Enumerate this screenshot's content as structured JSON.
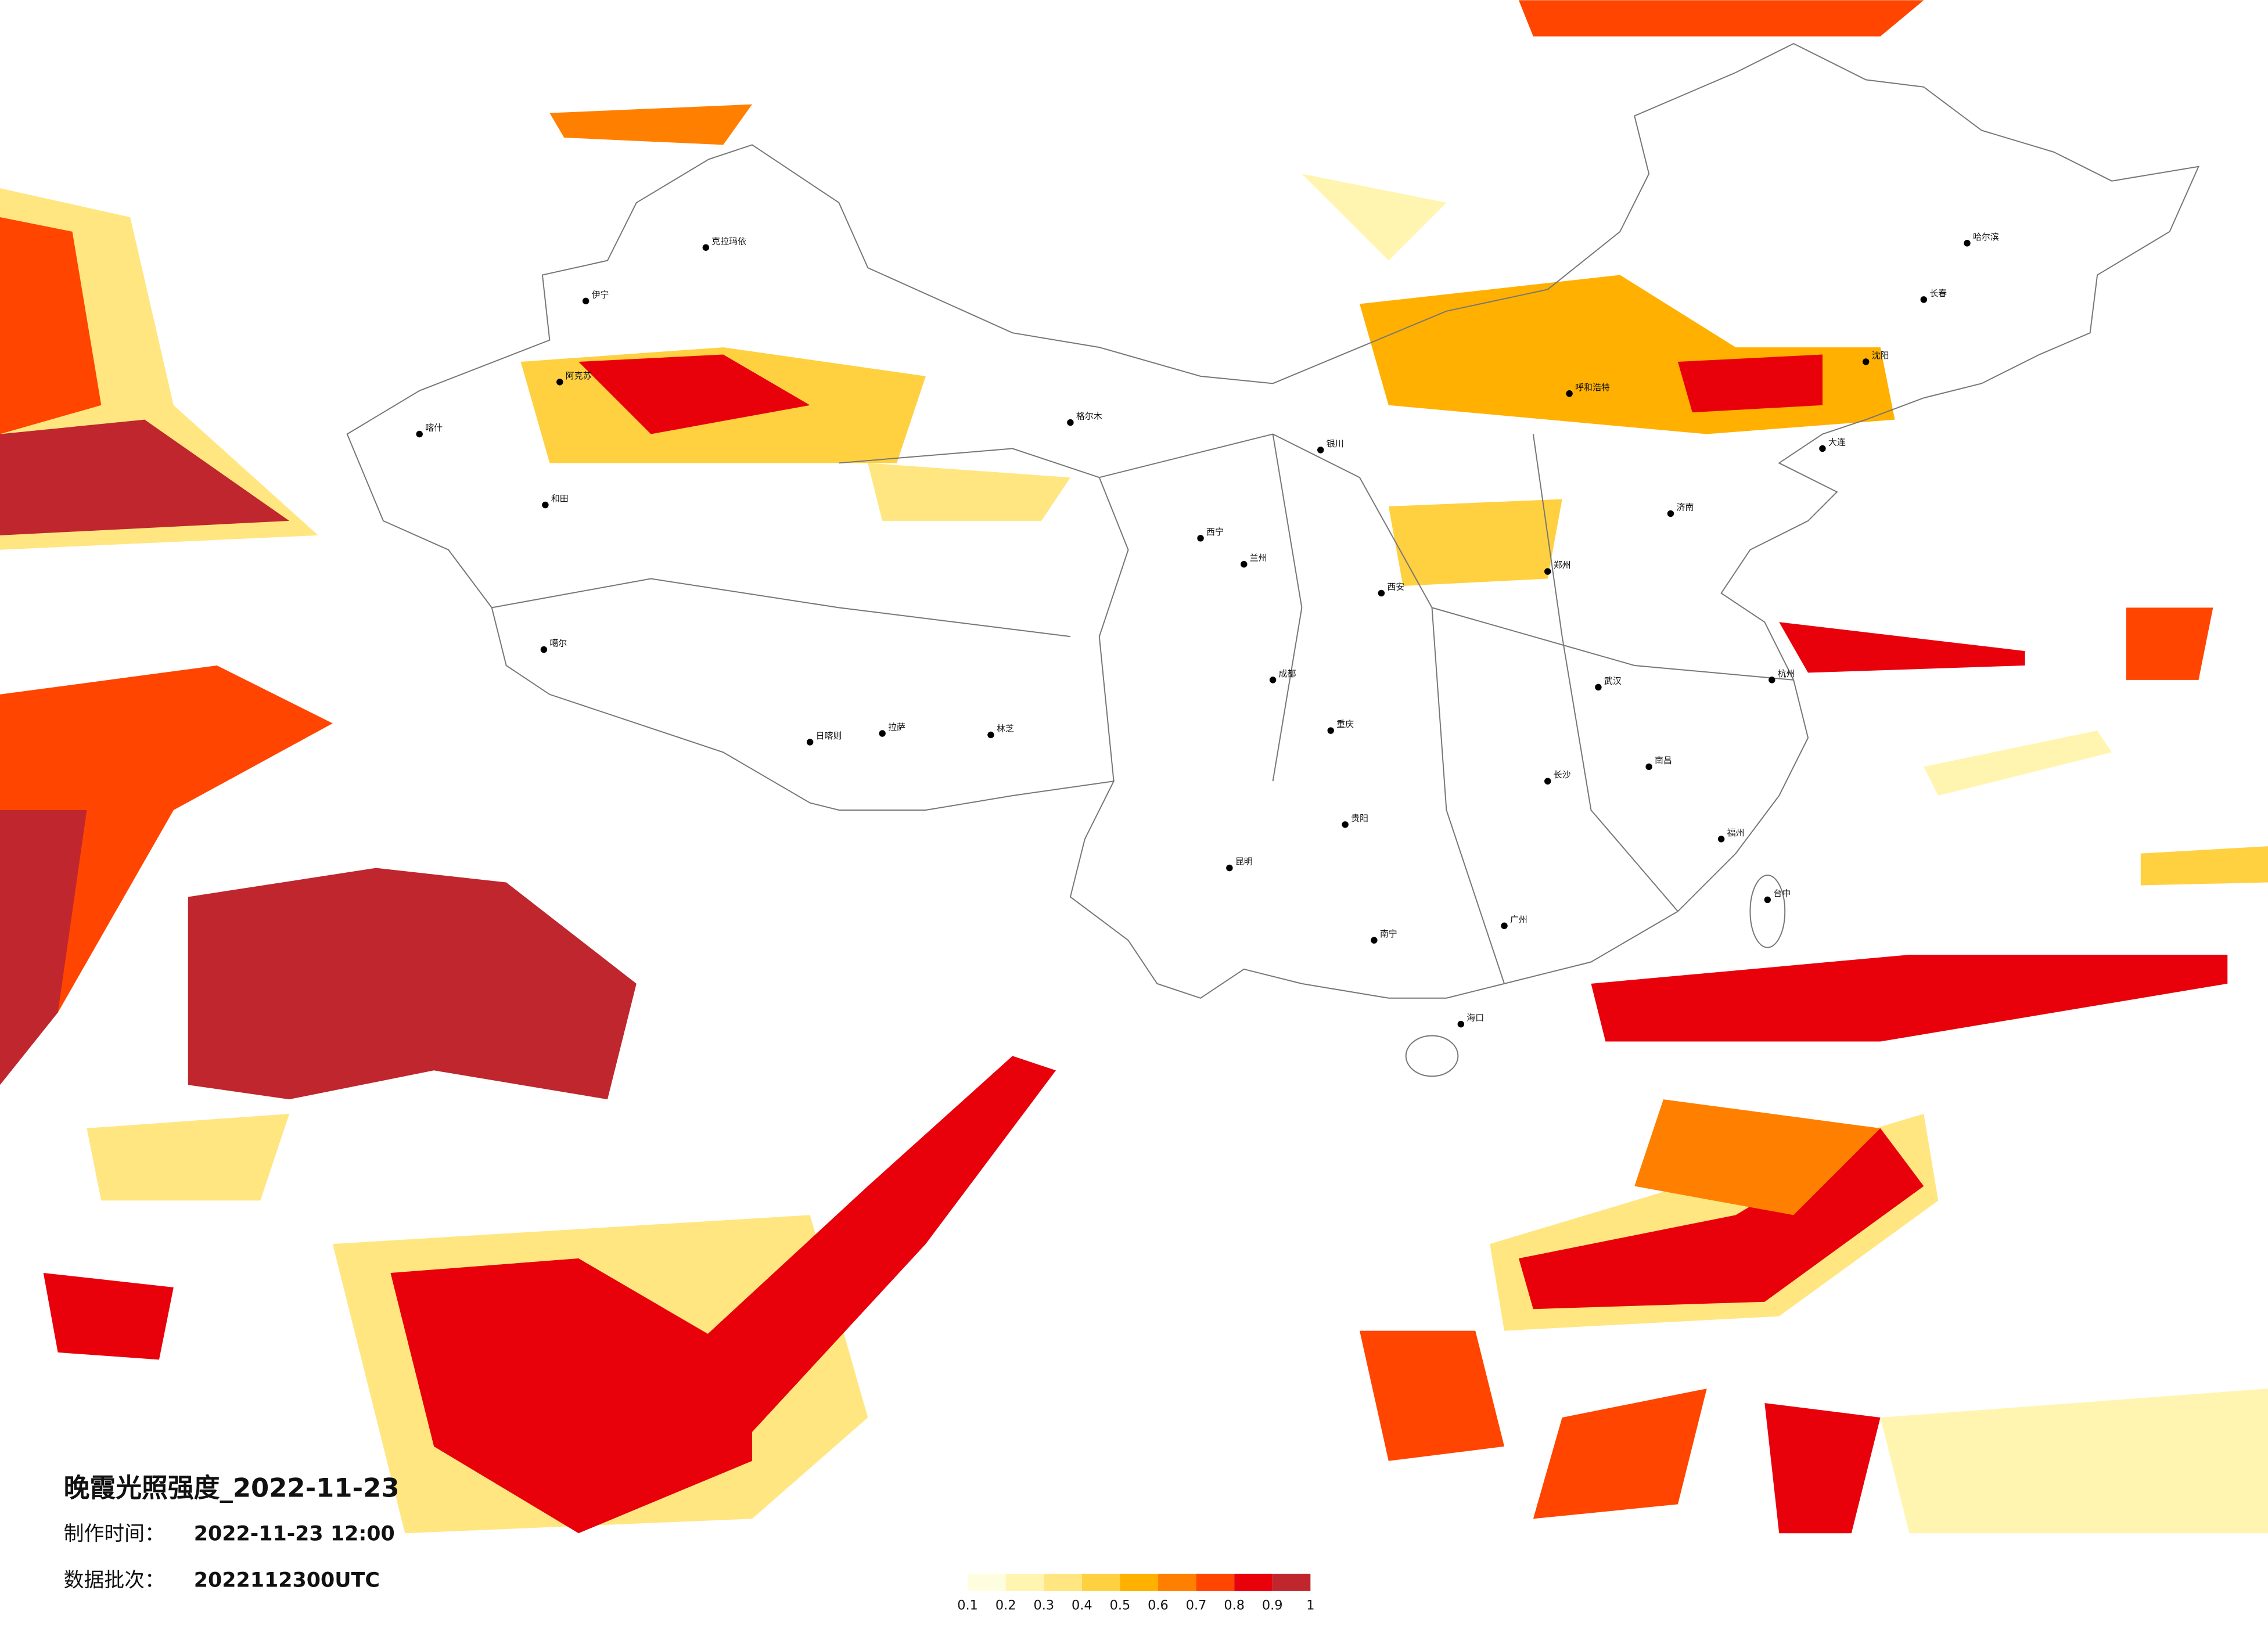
{
  "title": "晚霞光照强度_2022-11-23",
  "info": {
    "made_label": "制作时间：",
    "made_time": "2022-11-23 12:00",
    "batch_label": "数据批次：",
    "batch": "2022112300UTC"
  },
  "legend": {
    "ticks": [
      0.1,
      0.2,
      0.3,
      0.4,
      0.5,
      0.6,
      0.7,
      0.8,
      0.9,
      1
    ],
    "colors": [
      "#fffde0",
      "#fff5b0",
      "#ffe680",
      "#ffd040",
      "#ffb000",
      "#ff8000",
      "#ff4500",
      "#e8000b",
      "#c0262d"
    ]
  },
  "cities": [
    "克拉玛依",
    "伊宁",
    "阿克苏",
    "喀什",
    "和田",
    "噶尔",
    "日喀则",
    "拉萨",
    "林芝",
    "格尔木",
    "西宁",
    "兰州",
    "银川",
    "呼和浩特",
    "哈尔滨",
    "长春",
    "沈阳",
    "大连",
    "济南",
    "郑州",
    "西安",
    "武汉",
    "成都",
    "重庆",
    "贵阳",
    "昆明",
    "南宁",
    "广州",
    "福州",
    "台中",
    "海口",
    "杭州",
    "南昌",
    "长沙"
  ]
}
